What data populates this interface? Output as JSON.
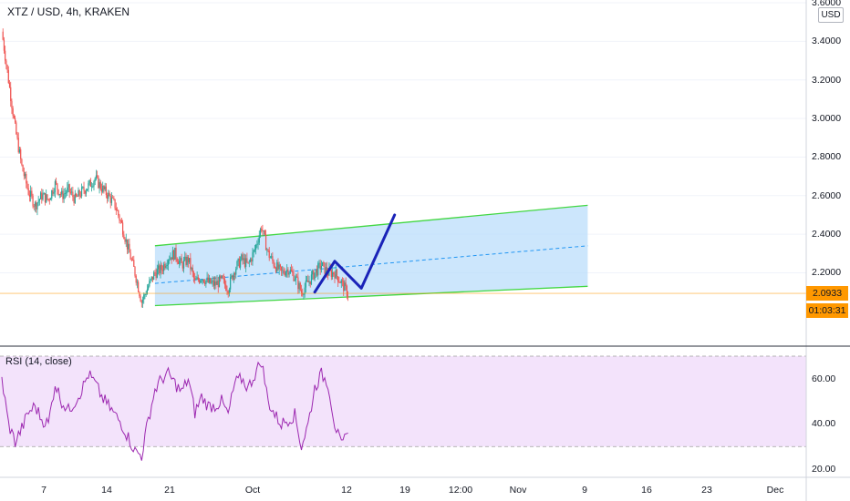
{
  "header": {
    "legend": "XTZ / USD, 4h, KRAKEN",
    "rsi_legend": "RSI (14, close)",
    "currency_button": "USD"
  },
  "price_axis": {
    "ticks": [
      "3.6000",
      "3.4000",
      "3.2000",
      "3.0000",
      "2.8000",
      "2.6000",
      "2.4000",
      "2.2000"
    ]
  },
  "rsi_axis": {
    "ticks": [
      "60.00",
      "40.00",
      "20.00"
    ]
  },
  "time_axis": {
    "ticks": [
      "7",
      "14",
      "21",
      "Oct",
      "12",
      "19",
      "12:00",
      "Nov",
      "9",
      "16",
      "23",
      "Dec"
    ]
  },
  "tags": {
    "last_price": "2.0933",
    "countdown": "01:03:31"
  },
  "colors": {
    "up": "#26a69a",
    "down": "#ef5350",
    "channel_line": "#42d742",
    "channel_fill": "#bbdefb",
    "projection": "#1a23b8",
    "rsi_line": "#9c27b0",
    "rsi_band": "#f3e3fb",
    "price_tag": "#ff9800"
  },
  "chart_data": {
    "type": "candlestick",
    "symbol": "XTZ / USD, 4h, KRAKEN",
    "ylim": [
      1.98,
      3.6
    ],
    "last_price": 2.0933,
    "close_path": [
      {
        "day": 0,
        "close": 3.45
      },
      {
        "day": 1,
        "close": 3.2
      },
      {
        "day": 2,
        "close": 2.95
      },
      {
        "day": 3,
        "close": 2.75
      },
      {
        "day": 4,
        "close": 2.62
      },
      {
        "day": 5,
        "close": 2.55
      },
      {
        "day": 6,
        "close": 2.6
      },
      {
        "day": 7,
        "close": 2.58
      },
      {
        "day": 8,
        "close": 2.66
      },
      {
        "day": 9,
        "close": 2.6
      },
      {
        "day": 10,
        "close": 2.63
      },
      {
        "day": 11,
        "close": 2.58
      },
      {
        "day": 12,
        "close": 2.62
      },
      {
        "day": 13,
        "close": 2.65
      },
      {
        "day": 14,
        "close": 2.69
      },
      {
        "day": 15,
        "close": 2.64
      },
      {
        "day": 16,
        "close": 2.6
      },
      {
        "day": 17,
        "close": 2.55
      },
      {
        "day": 18,
        "close": 2.45
      },
      {
        "day": 19,
        "close": 2.32
      },
      {
        "day": 20,
        "close": 2.2
      },
      {
        "day": 21,
        "close": 2.05
      },
      {
        "day": 22,
        "close": 2.13
      },
      {
        "day": 23,
        "close": 2.2
      },
      {
        "day": 24,
        "close": 2.22
      },
      {
        "day": 25,
        "close": 2.28
      },
      {
        "day": 26,
        "close": 2.3
      },
      {
        "day": 27,
        "close": 2.24
      },
      {
        "day": 28,
        "close": 2.27
      },
      {
        "day": 29,
        "close": 2.15
      },
      {
        "day": 30,
        "close": 2.18
      },
      {
        "day": 31,
        "close": 2.15
      },
      {
        "day": 32,
        "close": 2.14
      },
      {
        "day": 33,
        "close": 2.16
      },
      {
        "day": 34,
        "close": 2.12
      },
      {
        "day": 35,
        "close": 2.22
      },
      {
        "day": 36,
        "close": 2.27
      },
      {
        "day": 37,
        "close": 2.24
      },
      {
        "day": 38,
        "close": 2.32
      },
      {
        "day": 39,
        "close": 2.44
      },
      {
        "day": 40,
        "close": 2.3
      },
      {
        "day": 41,
        "close": 2.24
      },
      {
        "day": 42,
        "close": 2.2
      },
      {
        "day": 43,
        "close": 2.22
      },
      {
        "day": 44,
        "close": 2.18
      },
      {
        "day": 45,
        "close": 2.1
      },
      {
        "day": 46,
        "close": 2.15
      },
      {
        "day": 47,
        "close": 2.2
      },
      {
        "day": 48,
        "close": 2.24
      },
      {
        "day": 49,
        "close": 2.2
      },
      {
        "day": 50,
        "close": 2.2
      },
      {
        "day": 51,
        "close": 2.15
      },
      {
        "day": 52,
        "close": 2.09
      }
    ],
    "channel": {
      "upper": [
        {
          "day": 23,
          "price": 2.34
        },
        {
          "day": 88,
          "price": 2.55
        }
      ],
      "lower": [
        {
          "day": 23,
          "price": 2.03
        },
        {
          "day": 88,
          "price": 2.13
        }
      ],
      "mid": [
        {
          "day": 23,
          "price": 2.145
        },
        {
          "day": 88,
          "price": 2.34
        }
      ]
    },
    "projection": [
      {
        "day": 47,
        "price": 2.1
      },
      {
        "day": 50,
        "price": 2.26
      },
      {
        "day": 54,
        "price": 2.12
      },
      {
        "day": 59,
        "price": 2.5
      }
    ],
    "rsi": {
      "period": 14,
      "ylim": [
        18,
        74
      ],
      "band": [
        30,
        70
      ],
      "values": [
        60,
        40,
        32,
        38,
        45,
        48,
        42,
        40,
        58,
        50,
        46,
        50,
        55,
        62,
        58,
        52,
        48,
        44,
        40,
        34,
        28,
        26,
        42,
        55,
        60,
        62,
        58,
        54,
        60,
        45,
        52,
        48,
        48,
        50,
        44,
        58,
        60,
        56,
        62,
        68,
        50,
        44,
        40,
        42,
        44,
        30,
        40,
        56,
        62,
        58,
        40,
        30,
        36
      ]
    }
  }
}
